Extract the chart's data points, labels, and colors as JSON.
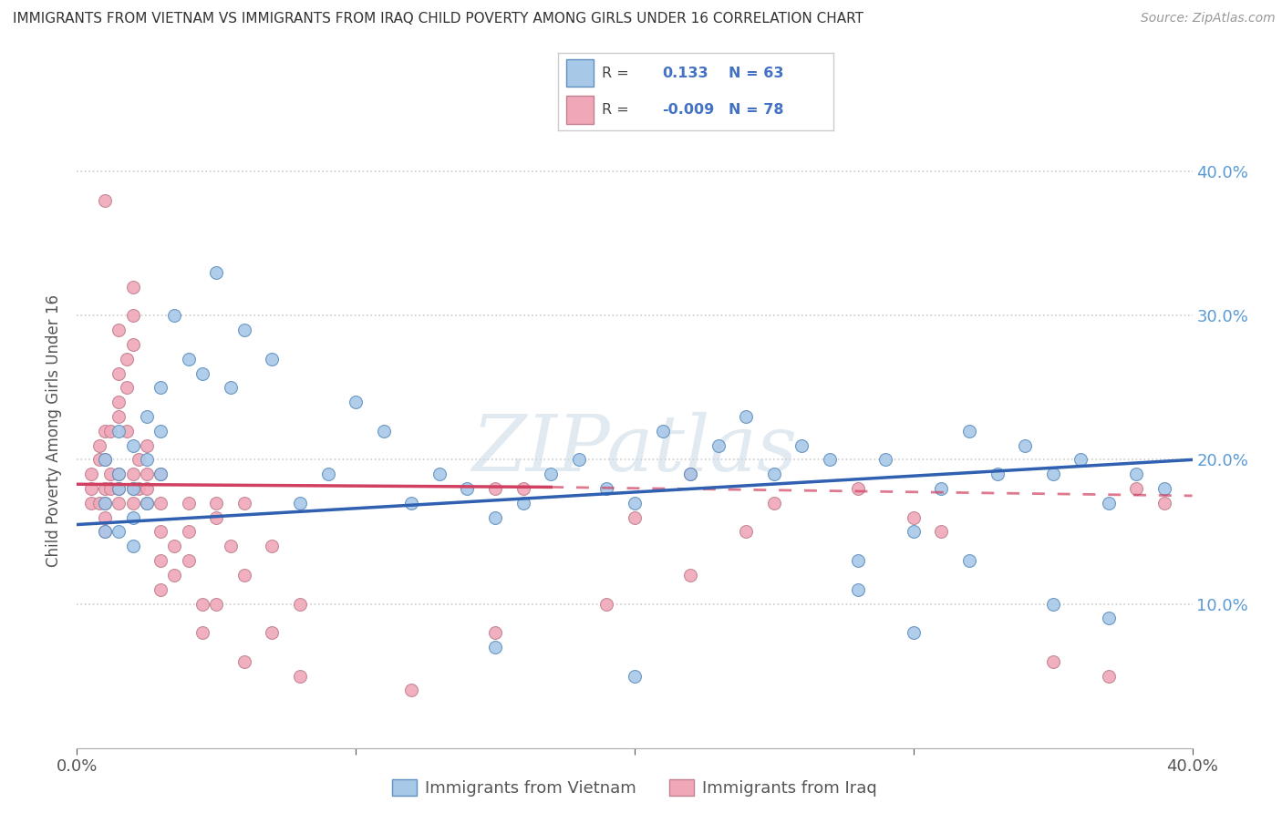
{
  "title": "IMMIGRANTS FROM VIETNAM VS IMMIGRANTS FROM IRAQ CHILD POVERTY AMONG GIRLS UNDER 16 CORRELATION CHART",
  "source": "Source: ZipAtlas.com",
  "ylabel": "Child Poverty Among Girls Under 16",
  "xlim": [
    0.0,
    0.4
  ],
  "ylim": [
    0.0,
    0.44
  ],
  "yticks": [
    0.1,
    0.2,
    0.3,
    0.4
  ],
  "vietnam_color": "#a8c8e8",
  "iraq_color": "#f0a8b8",
  "vietnam_line_color": "#3060b0",
  "iraq_line_color": "#d04060",
  "watermark": "ZIPatlas",
  "vietnam_r": 0.133,
  "iraq_r": -0.009,
  "vietnam_n": 63,
  "iraq_n": 78,
  "vietnam_x": [
    0.01,
    0.01,
    0.01,
    0.015,
    0.015,
    0.015,
    0.015,
    0.02,
    0.02,
    0.02,
    0.02,
    0.025,
    0.025,
    0.025,
    0.03,
    0.03,
    0.03,
    0.035,
    0.04,
    0.045,
    0.05,
    0.055,
    0.06,
    0.07,
    0.08,
    0.09,
    0.1,
    0.11,
    0.12,
    0.13,
    0.14,
    0.15,
    0.16,
    0.17,
    0.18,
    0.19,
    0.2,
    0.21,
    0.22,
    0.23,
    0.24,
    0.25,
    0.26,
    0.27,
    0.28,
    0.29,
    0.3,
    0.31,
    0.32,
    0.33,
    0.34,
    0.35,
    0.36,
    0.37,
    0.38,
    0.39,
    0.28,
    0.3,
    0.32,
    0.35,
    0.37,
    0.15,
    0.2
  ],
  "vietnam_y": [
    0.17,
    0.2,
    0.15,
    0.18,
    0.22,
    0.15,
    0.19,
    0.16,
    0.21,
    0.18,
    0.14,
    0.17,
    0.2,
    0.23,
    0.19,
    0.25,
    0.22,
    0.3,
    0.27,
    0.26,
    0.33,
    0.25,
    0.29,
    0.27,
    0.17,
    0.19,
    0.24,
    0.22,
    0.17,
    0.19,
    0.18,
    0.16,
    0.17,
    0.19,
    0.2,
    0.18,
    0.17,
    0.22,
    0.19,
    0.21,
    0.23,
    0.19,
    0.21,
    0.2,
    0.13,
    0.2,
    0.15,
    0.18,
    0.22,
    0.19,
    0.21,
    0.19,
    0.2,
    0.17,
    0.19,
    0.18,
    0.11,
    0.08,
    0.13,
    0.1,
    0.09,
    0.07,
    0.05
  ],
  "iraq_x": [
    0.005,
    0.005,
    0.005,
    0.008,
    0.008,
    0.008,
    0.01,
    0.01,
    0.01,
    0.01,
    0.01,
    0.01,
    0.01,
    0.012,
    0.012,
    0.012,
    0.015,
    0.015,
    0.015,
    0.015,
    0.015,
    0.015,
    0.015,
    0.018,
    0.018,
    0.018,
    0.02,
    0.02,
    0.02,
    0.02,
    0.02,
    0.02,
    0.022,
    0.022,
    0.025,
    0.025,
    0.025,
    0.025,
    0.03,
    0.03,
    0.03,
    0.03,
    0.03,
    0.035,
    0.035,
    0.04,
    0.04,
    0.04,
    0.045,
    0.045,
    0.05,
    0.05,
    0.05,
    0.055,
    0.06,
    0.06,
    0.06,
    0.07,
    0.07,
    0.08,
    0.08,
    0.12,
    0.15,
    0.16,
    0.22,
    0.25,
    0.3,
    0.31,
    0.35,
    0.37,
    0.38,
    0.39,
    0.15,
    0.2,
    0.24,
    0.28,
    0.19,
    0.22
  ],
  "iraq_y": [
    0.18,
    0.19,
    0.17,
    0.2,
    0.21,
    0.17,
    0.38,
    0.18,
    0.2,
    0.17,
    0.22,
    0.16,
    0.15,
    0.19,
    0.22,
    0.18,
    0.29,
    0.24,
    0.26,
    0.23,
    0.19,
    0.18,
    0.17,
    0.25,
    0.27,
    0.22,
    0.32,
    0.3,
    0.28,
    0.19,
    0.18,
    0.17,
    0.2,
    0.18,
    0.21,
    0.19,
    0.18,
    0.17,
    0.19,
    0.17,
    0.15,
    0.13,
    0.11,
    0.14,
    0.12,
    0.17,
    0.15,
    0.13,
    0.1,
    0.08,
    0.1,
    0.17,
    0.16,
    0.14,
    0.12,
    0.17,
    0.06,
    0.08,
    0.14,
    0.1,
    0.05,
    0.04,
    0.18,
    0.18,
    0.19,
    0.17,
    0.16,
    0.15,
    0.06,
    0.05,
    0.18,
    0.17,
    0.08,
    0.16,
    0.15,
    0.18,
    0.1,
    0.12
  ],
  "iraq_line_solid_end": 0.17,
  "iraq_line_dashed_end": 0.4,
  "iraq_line_start_y": 0.183,
  "iraq_line_end_y": 0.175,
  "vietnam_line_start_y": 0.155,
  "vietnam_line_end_y": 0.2
}
